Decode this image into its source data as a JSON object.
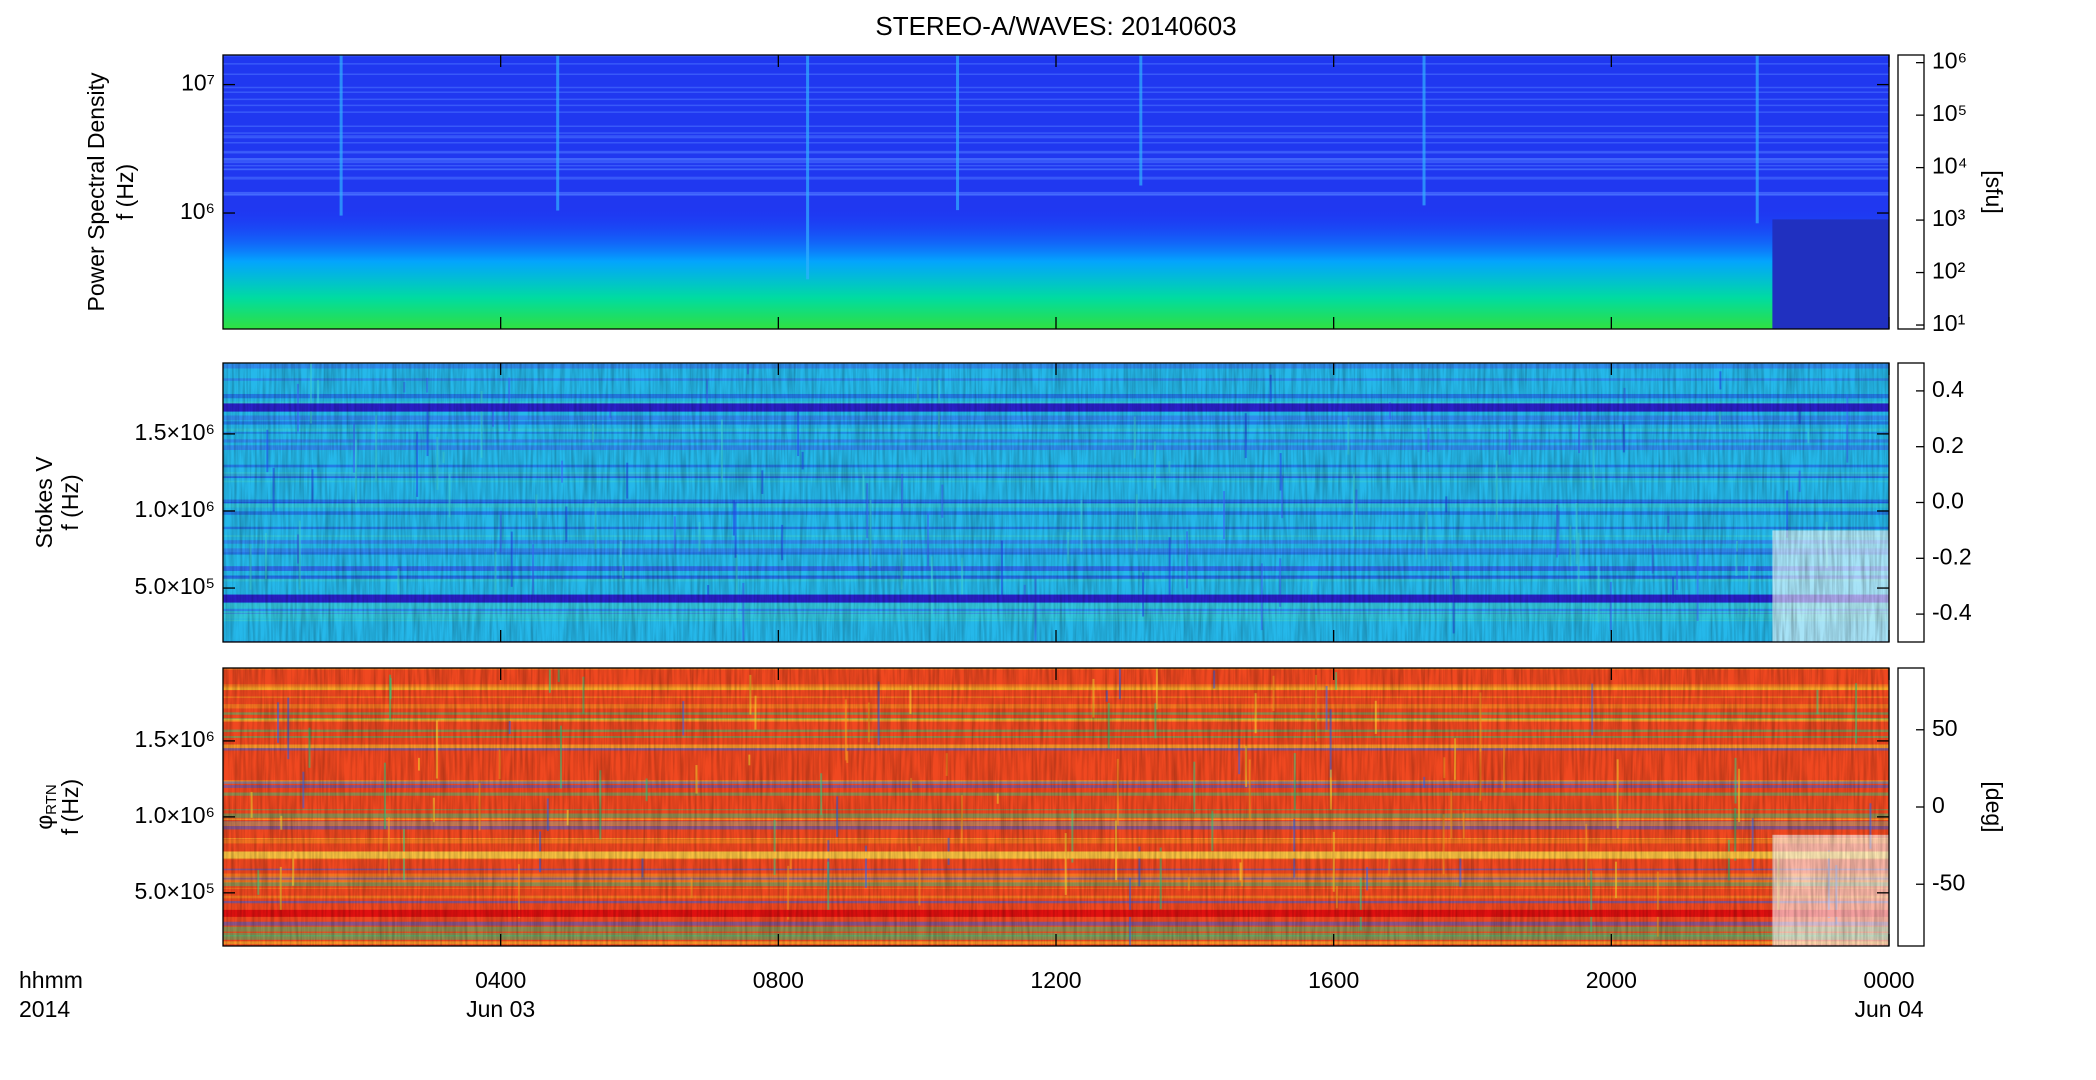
{
  "title": "STEREO-A/WAVES: 20140603",
  "chart_data": [
    {
      "type": "heatmap",
      "ylabel": [
        "Power Spectral Density",
        "f (Hz)"
      ],
      "ylog": true,
      "ylim": [
        125000,
        17000000
      ],
      "yticks": [
        {
          "value": 1000000,
          "label": "10⁶"
        },
        {
          "value": 10000000,
          "label": "10⁷"
        }
      ],
      "colorbar": {
        "label": "[sfu]",
        "log": true,
        "lim": [
          8.4,
          1400000
        ],
        "ticks": [
          {
            "value": 10,
            "label": "10¹"
          },
          {
            "value": 100,
            "label": "10²"
          },
          {
            "value": 1000,
            "label": "10³"
          },
          {
            "value": 10000,
            "label": "10⁴"
          },
          {
            "value": 100000,
            "label": "10⁵"
          },
          {
            "value": 1000000,
            "label": "10⁶"
          }
        ],
        "colormap": [
          "#1a0030",
          "#3a0090",
          "#1a30ff",
          "#0090ff",
          "#00dcdc",
          "#00e070",
          "#90f000",
          "#ffe000",
          "#ff8000",
          "#ff0000"
        ]
      }
    },
    {
      "type": "heatmap",
      "ylabel": [
        "Stokes V",
        "f (Hz)"
      ],
      "ylog": false,
      "ylim": [
        150000,
        1960000
      ],
      "yticks": [
        {
          "value": 500000,
          "label": "5.0×10⁵"
        },
        {
          "value": 1000000,
          "label": "1.0×10⁶"
        },
        {
          "value": 1500000,
          "label": "1.5×10⁶"
        }
      ],
      "colorbar": {
        "log": false,
        "lim": [
          -0.5,
          0.5
        ],
        "ticks": [
          0.4,
          0.2,
          {
            "value": 0,
            "label": "0.0"
          },
          -0.2,
          -0.4
        ],
        "colormap": [
          "#1a0030",
          "#3a0090",
          "#1a30ff",
          "#0090ff",
          "#00dcdc",
          "#00e070",
          "#90f000",
          "#ffe000",
          "#ff8000",
          "#ff0000"
        ]
      }
    },
    {
      "type": "heatmap",
      "ylabel": [
        "φ",
        "f (Hz)"
      ],
      "ylabel_sub": "RTN",
      "ylog": false,
      "ylim": [
        150000,
        1980000
      ],
      "yticks": [
        {
          "value": 500000,
          "label": "5.0×10⁵"
        },
        {
          "value": 1000000,
          "label": "1.0×10⁶"
        },
        {
          "value": 1500000,
          "label": "1.5×10⁶"
        }
      ],
      "colorbar": {
        "label": "[deg]",
        "log": false,
        "lim": [
          -90,
          90
        ],
        "ticks": [
          50,
          0,
          -50
        ],
        "colormap": [
          "#1a0030",
          "#3a0090",
          "#1a30ff",
          "#0090ff",
          "#00dcdc",
          "#00e070",
          "#90f000",
          "#ffe000",
          "#ff8000",
          "#ff0000"
        ]
      },
      "xlabel": [
        "hhmm",
        "2014"
      ],
      "xlim": [
        0,
        24
      ],
      "xticks": [
        {
          "value": 4,
          "label": "0400"
        },
        {
          "value": 8,
          "label": "0800"
        },
        {
          "value": 12,
          "label": "1200"
        },
        {
          "value": 16,
          "label": "1600"
        },
        {
          "value": 20,
          "label": "2000"
        },
        {
          "value": 24,
          "label": "0000"
        }
      ],
      "date_labels": [
        {
          "value": 4,
          "label": "Jun 03"
        },
        {
          "value": 24,
          "label": "Jun 04"
        }
      ]
    }
  ]
}
